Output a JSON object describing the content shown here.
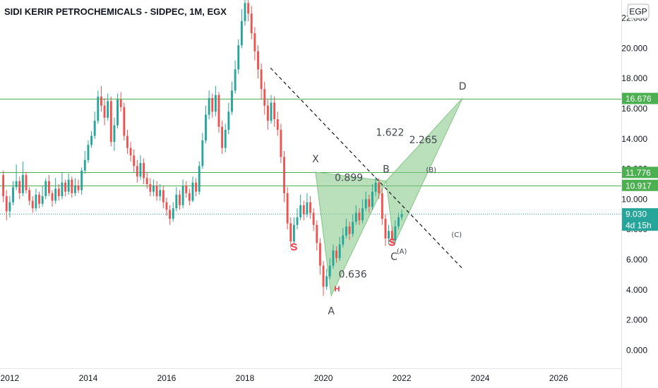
{
  "chart_data": {
    "type": "candlestick",
    "title": "SIDI KERIR PETROCHEMICALS - SIDPEC, 1M, EGX",
    "currency_unit": "EGP",
    "ylim": [
      -1.2,
      23.2
    ],
    "xlim": [
      2011.75,
      2027.6
    ],
    "y_ticks": [
      "0.000",
      "2.000",
      "4.000",
      "6.000",
      "8.000",
      "10.000",
      "12.000",
      "14.000",
      "16.000",
      "18.000",
      "20.000",
      "22.000"
    ],
    "y_tick_values": [
      0,
      2,
      4,
      6,
      8,
      10,
      12,
      14,
      16,
      18,
      20,
      22
    ],
    "x_ticks": [
      "2012",
      "2014",
      "2016",
      "2018",
      "2020",
      "2022",
      "2024",
      "2026"
    ],
    "x_tick_values": [
      2012,
      2014,
      2016,
      2018,
      2020,
      2022,
      2024,
      2026
    ],
    "colors": {
      "up": "#26a69a",
      "down": "#ef5350",
      "level": "#4caf50",
      "pattern_fill": "#81c784",
      "current": "#26a69a",
      "label_red": "#f23645"
    },
    "current_price": {
      "value": 9.03,
      "label": "9.030",
      "countdown": "4d 15h"
    },
    "levels": [
      {
        "value": 16.676,
        "label": "16.676"
      },
      {
        "value": 11.776,
        "label": "11.776"
      },
      {
        "value": 10.917,
        "label": "10.917"
      }
    ],
    "trendline": {
      "from": [
        2018.65,
        18.7
      ],
      "to": [
        2023.55,
        5.4
      ]
    },
    "pattern": {
      "X": {
        "x": 2019.8,
        "y": 11.8,
        "label": "X"
      },
      "A": {
        "x": 2020.2,
        "y": 3.6,
        "label": "A"
      },
      "B": {
        "x": 2021.6,
        "y": 11.2,
        "label": "B"
      },
      "C": {
        "x": 2021.8,
        "y": 7.0,
        "label": "C"
      },
      "D": {
        "x": 2023.55,
        "y": 16.7,
        "label": "D"
      },
      "ratios": [
        {
          "x": 2020.65,
          "y": 11.2,
          "label": "0.899"
        },
        {
          "x": 2020.75,
          "y": 4.8,
          "label": "0.636"
        },
        {
          "x": 2021.7,
          "y": 14.2,
          "label": "1.622"
        },
        {
          "x": 2022.55,
          "y": 13.7,
          "label": "2.265"
        }
      ]
    },
    "wave_labels": [
      {
        "x": 2022.75,
        "y": 11.8,
        "label": "(B)"
      },
      {
        "x": 2023.4,
        "y": 7.5,
        "label": "(C)"
      },
      {
        "x": 2022.0,
        "y": 6.4,
        "label": "(A)"
      }
    ],
    "hs_labels": [
      {
        "x": 2019.25,
        "y": 6.6,
        "label": "S"
      },
      {
        "x": 2020.35,
        "y": 3.9,
        "label": "H"
      },
      {
        "x": 2021.75,
        "y": 6.9,
        "label": "S"
      }
    ],
    "candles": [
      [
        11.6,
        10.2,
        11.9,
        9.8
      ],
      [
        10.2,
        9.2,
        10.6,
        8.6
      ],
      [
        9.2,
        9.8,
        10.2,
        8.8
      ],
      [
        9.8,
        10.8,
        11.2,
        9.6
      ],
      [
        10.8,
        11.2,
        12.3,
        10.6
      ],
      [
        11.2,
        10.4,
        11.5,
        10.0
      ],
      [
        10.4,
        11.6,
        12.5,
        10.2
      ],
      [
        11.6,
        10.6,
        11.8,
        10.4
      ],
      [
        10.6,
        9.9,
        10.8,
        9.6
      ],
      [
        9.9,
        9.4,
        10.2,
        9.1
      ],
      [
        9.4,
        10.3,
        10.7,
        9.2
      ],
      [
        10.3,
        9.7,
        10.5,
        9.4
      ],
      [
        9.7,
        10.2,
        10.9,
        9.5
      ],
      [
        10.2,
        11.2,
        11.4,
        10.0
      ],
      [
        11.2,
        10.4,
        11.6,
        10.2
      ],
      [
        10.4,
        9.9,
        10.6,
        9.5
      ],
      [
        9.9,
        10.7,
        11.4,
        9.7
      ],
      [
        10.7,
        10.2,
        11.0,
        9.9
      ],
      [
        10.2,
        11.1,
        11.8,
        10.0
      ],
      [
        11.1,
        10.5,
        11.3,
        10.2
      ],
      [
        10.5,
        11.3,
        11.7,
        10.3
      ],
      [
        11.3,
        10.4,
        11.5,
        10.1
      ],
      [
        10.4,
        10.9,
        11.4,
        10.2
      ],
      [
        10.9,
        10.6,
        11.3,
        10.4
      ],
      [
        10.6,
        11.9,
        12.1,
        10.3
      ],
      [
        11.9,
        12.6,
        13.2,
        11.7
      ],
      [
        12.6,
        13.6,
        13.9,
        12.4
      ],
      [
        13.6,
        14.2,
        14.5,
        13.4
      ],
      [
        14.2,
        15.2,
        15.8,
        14.0
      ],
      [
        15.2,
        16.8,
        17.2,
        15.0
      ],
      [
        16.8,
        16.2,
        17.5,
        15.8
      ],
      [
        16.2,
        15.4,
        16.7,
        14.9
      ],
      [
        15.4,
        16.5,
        17.0,
        15.2
      ],
      [
        16.5,
        13.8,
        16.8,
        13.5
      ],
      [
        13.8,
        14.9,
        15.4,
        13.2
      ],
      [
        14.9,
        16.6,
        17.0,
        14.7
      ],
      [
        16.6,
        16.1,
        17.1,
        15.8
      ],
      [
        16.1,
        14.2,
        16.4,
        13.9
      ],
      [
        14.2,
        13.4,
        14.6,
        13.0
      ],
      [
        13.4,
        12.9,
        13.8,
        12.5
      ],
      [
        12.9,
        12.2,
        13.3,
        11.8
      ],
      [
        12.2,
        11.5,
        12.6,
        11.1
      ],
      [
        11.5,
        12.4,
        12.9,
        11.3
      ],
      [
        12.4,
        11.4,
        12.7,
        11.0
      ],
      [
        11.4,
        11.0,
        11.8,
        10.7
      ],
      [
        11.0,
        10.5,
        11.4,
        10.2
      ],
      [
        10.5,
        10.9,
        11.3,
        10.2
      ],
      [
        10.9,
        10.2,
        11.2,
        9.9
      ],
      [
        10.2,
        10.6,
        11.0,
        9.9
      ],
      [
        10.6,
        9.8,
        10.9,
        9.4
      ],
      [
        9.8,
        9.3,
        10.1,
        8.9
      ],
      [
        9.3,
        8.7,
        9.6,
        8.3
      ],
      [
        8.7,
        9.4,
        9.8,
        8.5
      ],
      [
        9.4,
        10.3,
        10.8,
        9.2
      ],
      [
        10.3,
        9.6,
        10.6,
        9.3
      ],
      [
        9.6,
        10.9,
        11.3,
        9.4
      ],
      [
        10.9,
        10.4,
        11.2,
        10.1
      ],
      [
        10.4,
        9.9,
        10.7,
        9.6
      ],
      [
        9.9,
        11.1,
        11.5,
        9.8
      ],
      [
        11.1,
        10.5,
        11.4,
        10.2
      ],
      [
        10.5,
        12.2,
        12.5,
        10.3
      ],
      [
        12.2,
        13.9,
        14.4,
        12.0
      ],
      [
        13.9,
        15.6,
        16.2,
        13.7
      ],
      [
        15.6,
        16.7,
        17.2,
        15.3
      ],
      [
        16.7,
        15.8,
        17.0,
        15.4
      ],
      [
        15.8,
        16.9,
        17.5,
        15.5
      ],
      [
        16.9,
        14.8,
        17.1,
        14.4
      ],
      [
        14.8,
        13.4,
        15.2,
        13.0
      ],
      [
        13.4,
        14.6,
        15.0,
        13.1
      ],
      [
        14.6,
        15.8,
        16.4,
        14.3
      ],
      [
        15.8,
        17.2,
        17.8,
        15.6
      ],
      [
        17.2,
        18.6,
        19.2,
        17.0
      ],
      [
        18.6,
        20.2,
        20.6,
        18.3
      ],
      [
        20.2,
        21.8,
        22.6,
        20.0
      ],
      [
        21.8,
        23.0,
        23.8,
        21.5
      ],
      [
        23.0,
        22.3,
        23.6,
        21.8
      ],
      [
        22.3,
        21.0,
        22.8,
        20.6
      ],
      [
        21.0,
        19.8,
        21.4,
        19.2
      ],
      [
        19.8,
        18.6,
        20.2,
        18.0
      ],
      [
        18.6,
        17.3,
        19.0,
        16.6
      ],
      [
        17.3,
        16.2,
        17.8,
        15.6
      ],
      [
        16.2,
        15.2,
        16.6,
        14.6
      ],
      [
        15.2,
        16.4,
        16.9,
        15.0
      ],
      [
        16.4,
        15.3,
        16.8,
        14.8
      ],
      [
        15.3,
        14.6,
        15.8,
        14.2
      ],
      [
        14.6,
        12.8,
        15.0,
        12.4
      ],
      [
        12.8,
        10.4,
        13.2,
        9.8
      ],
      [
        10.4,
        8.4,
        10.8,
        8.0
      ],
      [
        8.4,
        7.2,
        8.8,
        6.8
      ],
      [
        7.2,
        8.3,
        8.8,
        7.0
      ],
      [
        8.3,
        8.8,
        9.4,
        8.0
      ],
      [
        8.8,
        9.6,
        10.3,
        8.6
      ],
      [
        9.6,
        9.0,
        9.9,
        8.6
      ],
      [
        9.0,
        9.8,
        10.4,
        8.8
      ],
      [
        9.8,
        9.1,
        10.2,
        8.7
      ],
      [
        9.1,
        8.3,
        9.4,
        7.9
      ],
      [
        8.3,
        7.1,
        8.6,
        6.6
      ],
      [
        7.1,
        5.6,
        7.4,
        5.0
      ],
      [
        5.6,
        4.2,
        5.9,
        3.6
      ],
      [
        4.2,
        4.9,
        5.4,
        4.0
      ],
      [
        4.9,
        5.6,
        6.1,
        4.7
      ],
      [
        5.6,
        6.6,
        7.0,
        5.4
      ],
      [
        6.6,
        6.1,
        6.9,
        5.8
      ],
      [
        6.1,
        7.0,
        7.5,
        5.9
      ],
      [
        7.0,
        7.6,
        8.1,
        6.8
      ],
      [
        7.6,
        8.2,
        8.7,
        7.4
      ],
      [
        8.2,
        7.7,
        8.5,
        7.3
      ],
      [
        7.7,
        8.5,
        9.0,
        7.5
      ],
      [
        8.5,
        9.1,
        9.6,
        8.3
      ],
      [
        9.1,
        8.6,
        9.4,
        8.3
      ],
      [
        8.6,
        9.4,
        10.0,
        8.4
      ],
      [
        9.4,
        10.0,
        10.5,
        9.2
      ],
      [
        10.0,
        9.5,
        10.3,
        9.1
      ],
      [
        9.5,
        10.5,
        11.0,
        9.3
      ],
      [
        10.5,
        11.1,
        11.5,
        10.2
      ],
      [
        11.1,
        10.4,
        11.4,
        10.0
      ],
      [
        10.4,
        8.7,
        10.7,
        8.3
      ],
      [
        8.7,
        7.4,
        9.0,
        6.9
      ],
      [
        7.4,
        7.9,
        8.3,
        7.0
      ],
      [
        7.9,
        7.3,
        8.2,
        6.9
      ],
      [
        7.3,
        8.2,
        8.6,
        7.1
      ],
      [
        8.2,
        8.8,
        9.1,
        8.0
      ],
      [
        8.8,
        9.0,
        9.3,
        8.6
      ]
    ]
  }
}
